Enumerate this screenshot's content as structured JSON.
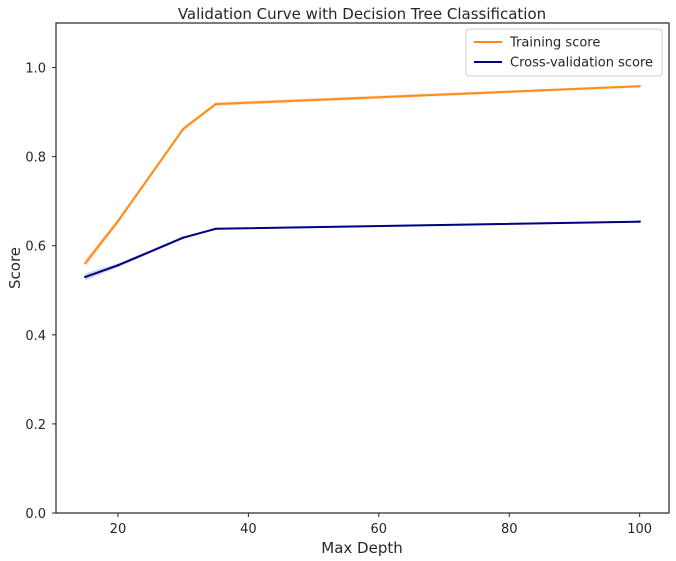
{
  "chart_data": {
    "type": "line",
    "title": "Validation Curve with Decision Tree Classification",
    "xlabel": "Max Depth",
    "ylabel": "Score",
    "xlim": [
      10.5,
      104.5
    ],
    "ylim": [
      0.0,
      1.1
    ],
    "xticks": [
      20,
      40,
      60,
      80,
      100
    ],
    "yticks": [
      0.0,
      0.2,
      0.4,
      0.6,
      0.8,
      1.0
    ],
    "xtick_labels": [
      "20",
      "40",
      "60",
      "80",
      "100"
    ],
    "ytick_labels": [
      "0.0",
      "0.2",
      "0.4",
      "0.6",
      "0.8",
      "1.0"
    ],
    "grid": false,
    "legend_position": "top-right",
    "x": [
      15,
      20,
      30,
      35,
      100
    ],
    "series": [
      {
        "name": "Training score",
        "color": "#ff8c1a",
        "band_color": "#ffcc99",
        "values": [
          0.561,
          0.655,
          0.862,
          0.918,
          0.958
        ],
        "std": [
          0.008,
          0.006,
          0.005,
          0.004,
          0.003
        ]
      },
      {
        "name": "Cross-validation score",
        "color": "#000080",
        "band_color": "#b3b3e6",
        "values": [
          0.53,
          0.556,
          0.618,
          0.638,
          0.654
        ],
        "std": [
          0.008,
          0.004,
          0.003,
          0.002,
          0.002
        ]
      }
    ]
  }
}
